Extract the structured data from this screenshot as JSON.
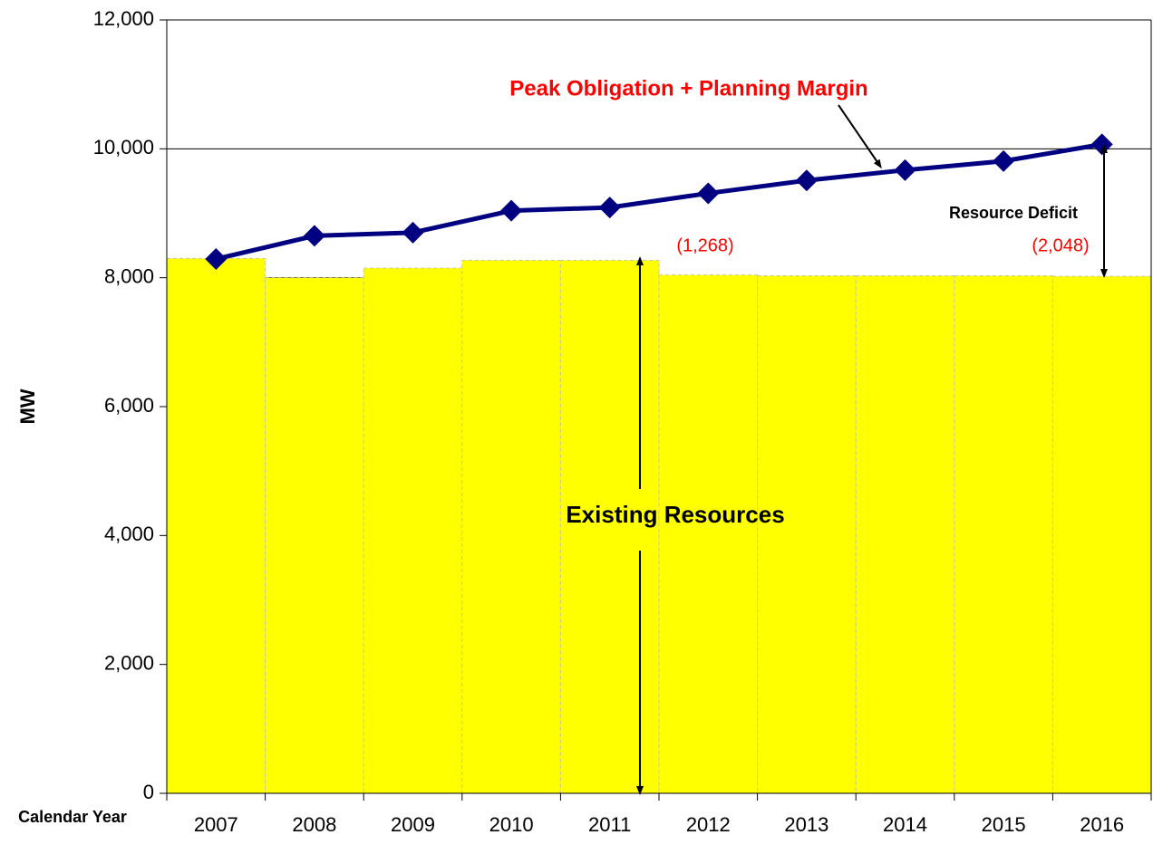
{
  "chart_data": {
    "type": "bar_line",
    "y_label": "MW",
    "x_label": "Calendar Year",
    "categories": [
      "2007",
      "2008",
      "2009",
      "2010",
      "2011",
      "2012",
      "2013",
      "2014",
      "2015",
      "2016"
    ],
    "series": [
      {
        "name": "Existing Resources",
        "type": "bar",
        "color": "#ffff00",
        "values": [
          8300,
          8000,
          8150,
          8270,
          8270,
          8042,
          8030,
          8030,
          8030,
          8022
        ]
      },
      {
        "name": "Peak Obligation + Planning Margin",
        "type": "line",
        "color": "#000080",
        "values": [
          8290,
          8650,
          8700,
          9040,
          9090,
          9310,
          9510,
          9670,
          9810,
          10070
        ]
      }
    ],
    "annotations": [
      "Resource Deficit",
      "(1,268)",
      "(2,048)"
    ],
    "ylim": [
      0,
      12000
    ],
    "yticks": [
      0,
      {
        "value": 2000,
        "label": "2,000"
      },
      {
        "value": 4000,
        "label": "4,000"
      },
      {
        "value": 6000,
        "label": "6,000"
      },
      {
        "value": 8000,
        "label": "8,000"
      },
      {
        "value": 10000,
        "label": "10,000"
      },
      {
        "value": 12000,
        "label": "12,000"
      }
    ],
    "grid": true
  }
}
